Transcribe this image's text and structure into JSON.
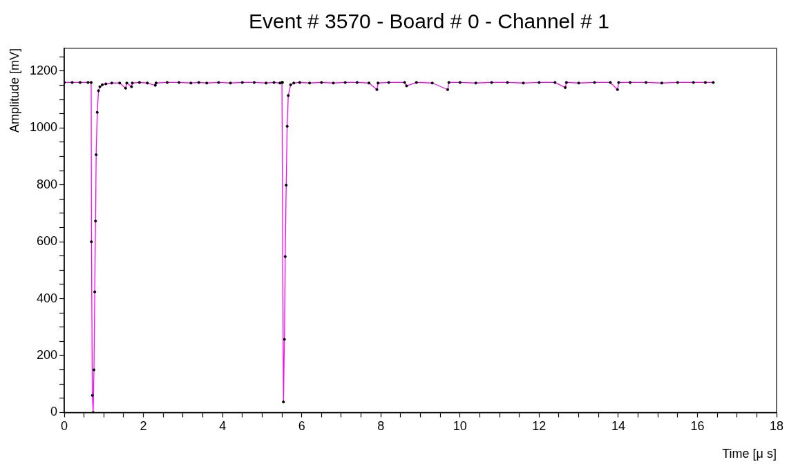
{
  "chart_data": {
    "type": "line",
    "title": "Event # 3570 - Board # 0 - Channel # 1",
    "xlabel": "Time [μ s]",
    "ylabel": "Amplitude [mV]",
    "x": [
      0,
      0.2,
      0.4,
      0.6,
      0.68,
      0.686,
      0.71,
      0.73,
      0.75,
      0.77,
      0.79,
      0.806,
      0.833,
      0.865,
      0.9,
      0.96,
      1.05,
      1.2,
      1.4,
      1.55,
      1.58,
      1.7,
      1.72,
      1.9,
      2.1,
      2.3,
      2.32,
      2.6,
      2.9,
      3.2,
      3.4,
      3.6,
      3.9,
      4.2,
      4.5,
      4.8,
      5.1,
      5.3,
      5.45,
      5.5,
      5.513,
      5.538,
      5.563,
      5.583,
      5.608,
      5.633,
      5.66,
      5.72,
      5.8,
      5.95,
      6.2,
      6.5,
      6.8,
      7.1,
      7.4,
      7.7,
      7.9,
      7.93,
      8.2,
      8.6,
      8.65,
      8.9,
      9.3,
      9.69,
      9.72,
      10.0,
      10.4,
      10.8,
      11.2,
      11.6,
      12.0,
      12.4,
      12.66,
      12.69,
      13.0,
      13.4,
      13.8,
      13.98,
      14.01,
      14.3,
      14.7,
      15.1,
      15.5,
      15.9,
      16.2,
      16.4
    ],
    "series": [
      {
        "type": "line",
        "color": "#ff00ff",
        "marker": "none",
        "values": [
          1160,
          1160,
          1160,
          1160,
          1160,
          600,
          60,
          0,
          150,
          424,
          673,
          906,
          1055,
          1131,
          1145,
          1152,
          1155,
          1158,
          1158,
          1140,
          1158,
          1145,
          1158,
          1160,
          1158,
          1150,
          1158,
          1160,
          1160,
          1158,
          1160,
          1158,
          1160,
          1158,
          1160,
          1160,
          1158,
          1160,
          1158,
          1160,
          1160,
          37,
          257,
          548,
          799,
          1006,
          1114,
          1152,
          1158,
          1160,
          1158,
          1160,
          1158,
          1160,
          1160,
          1158,
          1135,
          1158,
          1160,
          1160,
          1148,
          1160,
          1158,
          1135,
          1160,
          1160,
          1158,
          1160,
          1160,
          1158,
          1160,
          1160,
          1142,
          1160,
          1158,
          1160,
          1160,
          1135,
          1160,
          1160,
          1160,
          1158,
          1160,
          1160,
          1160,
          1160
        ]
      },
      {
        "type": "scatter",
        "color": "#000000",
        "marker": "circle",
        "values": [
          1160,
          1160,
          1160,
          1160,
          1160,
          600,
          60,
          0,
          150,
          424,
          673,
          906,
          1055,
          1131,
          1145,
          1152,
          1155,
          1158,
          1158,
          1140,
          1158,
          1145,
          1158,
          1160,
          1158,
          1150,
          1158,
          1160,
          1160,
          1158,
          1160,
          1158,
          1160,
          1158,
          1160,
          1160,
          1158,
          1160,
          1158,
          1160,
          1160,
          37,
          257,
          548,
          799,
          1006,
          1114,
          1152,
          1158,
          1160,
          1158,
          1160,
          1158,
          1160,
          1160,
          1158,
          1135,
          1158,
          1160,
          1160,
          1148,
          1160,
          1158,
          1135,
          1160,
          1160,
          1158,
          1160,
          1160,
          1158,
          1160,
          1160,
          1142,
          1160,
          1158,
          1160,
          1160,
          1135,
          1160,
          1160,
          1160,
          1158,
          1160,
          1160,
          1160,
          1160
        ]
      }
    ],
    "xlim": [
      0,
      18
    ],
    "xticks": [
      0,
      {
        "value": 0.5,
        "label": null
      },
      {
        "value": 1,
        "label": null
      },
      {
        "value": 1.5,
        "label": null
      },
      2,
      {
        "value": 2.5,
        "label": null
      },
      {
        "value": 3,
        "label": null
      },
      {
        "value": 3.5,
        "label": null
      },
      4,
      {
        "value": 4.5,
        "label": null
      },
      {
        "value": 5,
        "label": null
      },
      {
        "value": 5.5,
        "label": null
      },
      6,
      {
        "value": 6.5,
        "label": null
      },
      {
        "value": 7,
        "label": null
      },
      {
        "value": 7.5,
        "label": null
      },
      8,
      {
        "value": 8.5,
        "label": null
      },
      {
        "value": 9,
        "label": null
      },
      {
        "value": 9.5,
        "label": null
      },
      10,
      {
        "value": 10.5,
        "label": null
      },
      {
        "value": 11,
        "label": null
      },
      {
        "value": 11.5,
        "label": null
      },
      12,
      {
        "value": 12.5,
        "label": null
      },
      {
        "value": 13,
        "label": null
      },
      {
        "value": 13.5,
        "label": null
      },
      14,
      {
        "value": 14.5,
        "label": null
      },
      {
        "value": 15,
        "label": null
      },
      {
        "value": 15.5,
        "label": null
      },
      16,
      {
        "value": 16.5,
        "label": null
      },
      {
        "value": 17,
        "label": null
      },
      {
        "value": 17.5,
        "label": null
      },
      18
    ],
    "ylim": [
      0,
      1280
    ],
    "yticks": [
      0,
      {
        "value": 50,
        "label": null
      },
      {
        "value": 100,
        "label": null
      },
      {
        "value": 150,
        "label": null
      },
      200,
      {
        "value": 250,
        "label": null
      },
      {
        "value": 300,
        "label": null
      },
      {
        "value": 350,
        "label": null
      },
      400,
      {
        "value": 450,
        "label": null
      },
      {
        "value": 500,
        "label": null
      },
      {
        "value": 550,
        "label": null
      },
      600,
      {
        "value": 650,
        "label": null
      },
      {
        "value": 700,
        "label": null
      },
      {
        "value": 750,
        "label": null
      },
      800,
      {
        "value": 850,
        "label": null
      },
      {
        "value": 900,
        "label": null
      },
      {
        "value": 950,
        "label": null
      },
      1000,
      {
        "value": 1050,
        "label": null
      },
      {
        "value": 1100,
        "label": null
      },
      {
        "value": 1150,
        "label": null
      },
      1200,
      {
        "value": 1250,
        "label": null
      }
    ],
    "grid": false,
    "legend": false
  }
}
